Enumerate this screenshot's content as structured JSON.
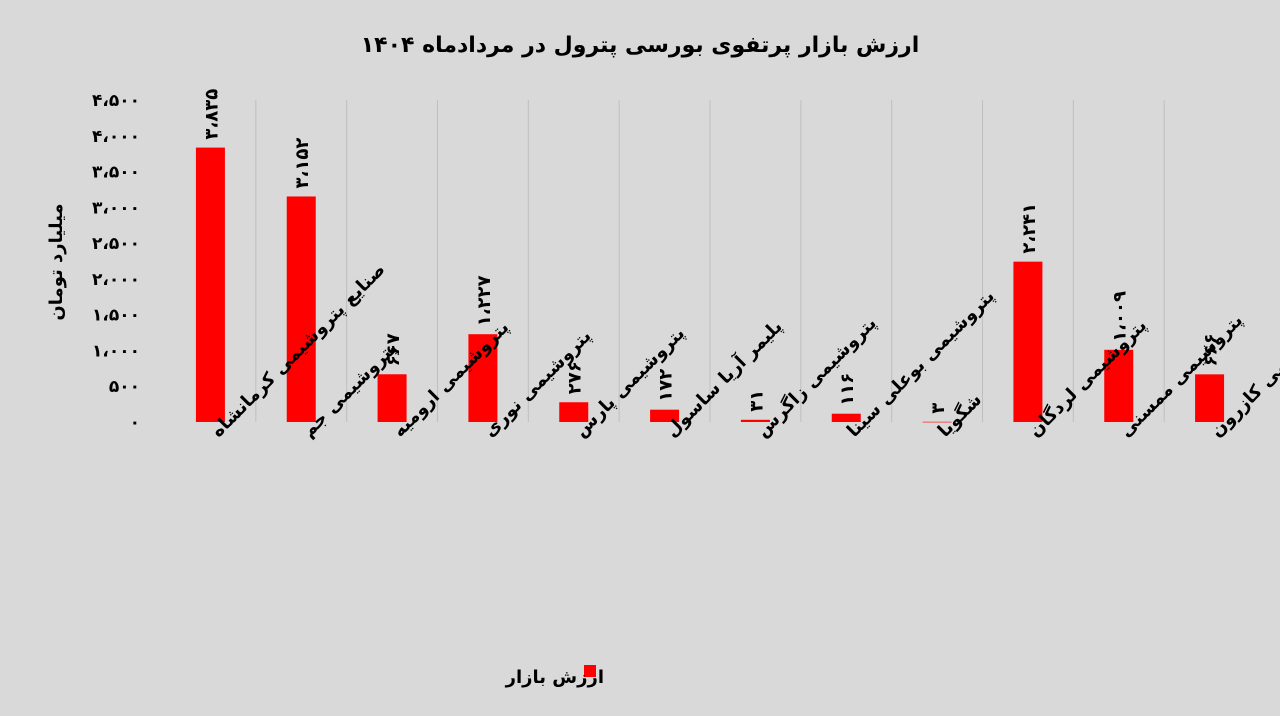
{
  "chart_data": {
    "type": "bar",
    "title": "ارزش بازار پرتفوی بورسی پترول در مردادماه ۱۴۰۴",
    "ylabel": "میلیارد تومان",
    "xlabel": "",
    "ylim": [
      0,
      4500
    ],
    "yticks": [
      0,
      500,
      1000,
      1500,
      2000,
      2500,
      3000,
      3500,
      4000,
      4500
    ],
    "ytick_labels": [
      "۰",
      "۵۰۰",
      "۱،۰۰۰",
      "۱،۵۰۰",
      "۲،۰۰۰",
      "۲،۵۰۰",
      "۳،۰۰۰",
      "۳،۵۰۰",
      "۴،۰۰۰",
      "۴،۵۰۰"
    ],
    "categories": [
      "صنایع پتروشیمی کرمانشاه",
      "پتروشیمی جم",
      "پتروشیمی ارومیه",
      "پتروشیمی نوری",
      "پتروشیمی پارس",
      "پلیمر آریا ساسول",
      "پتروشیمی زاگرس",
      "پتروشیمی بوعلی سینا",
      "شگویا",
      "پتروشیمی لردگان",
      "پتروشیمی ممسنی",
      "پتروشیمی کازرون"
    ],
    "series": [
      {
        "name": "ارزش بازار",
        "values": [
          3835,
          3152,
          667,
          1227,
          276,
          172,
          31,
          116,
          3,
          2241,
          1009,
          666
        ],
        "data_labels": [
          "۳،۸۳۵",
          "۳،۱۵۲",
          "۶۶۷",
          "۱،۲۲۷",
          "۲۷۶",
          "۱۷۲",
          "۳۱",
          "۱۱۶",
          "۳",
          "۲،۲۴۱",
          "۱،۰۰۹",
          "۶۶۶"
        ],
        "color": "#ff0000"
      }
    ],
    "grid": "vertical",
    "legend": "bottom",
    "colors": {
      "bar": "#ff0000",
      "background": "#d9d9d9",
      "grid": "#bfbfbf",
      "text": "#000000"
    }
  }
}
